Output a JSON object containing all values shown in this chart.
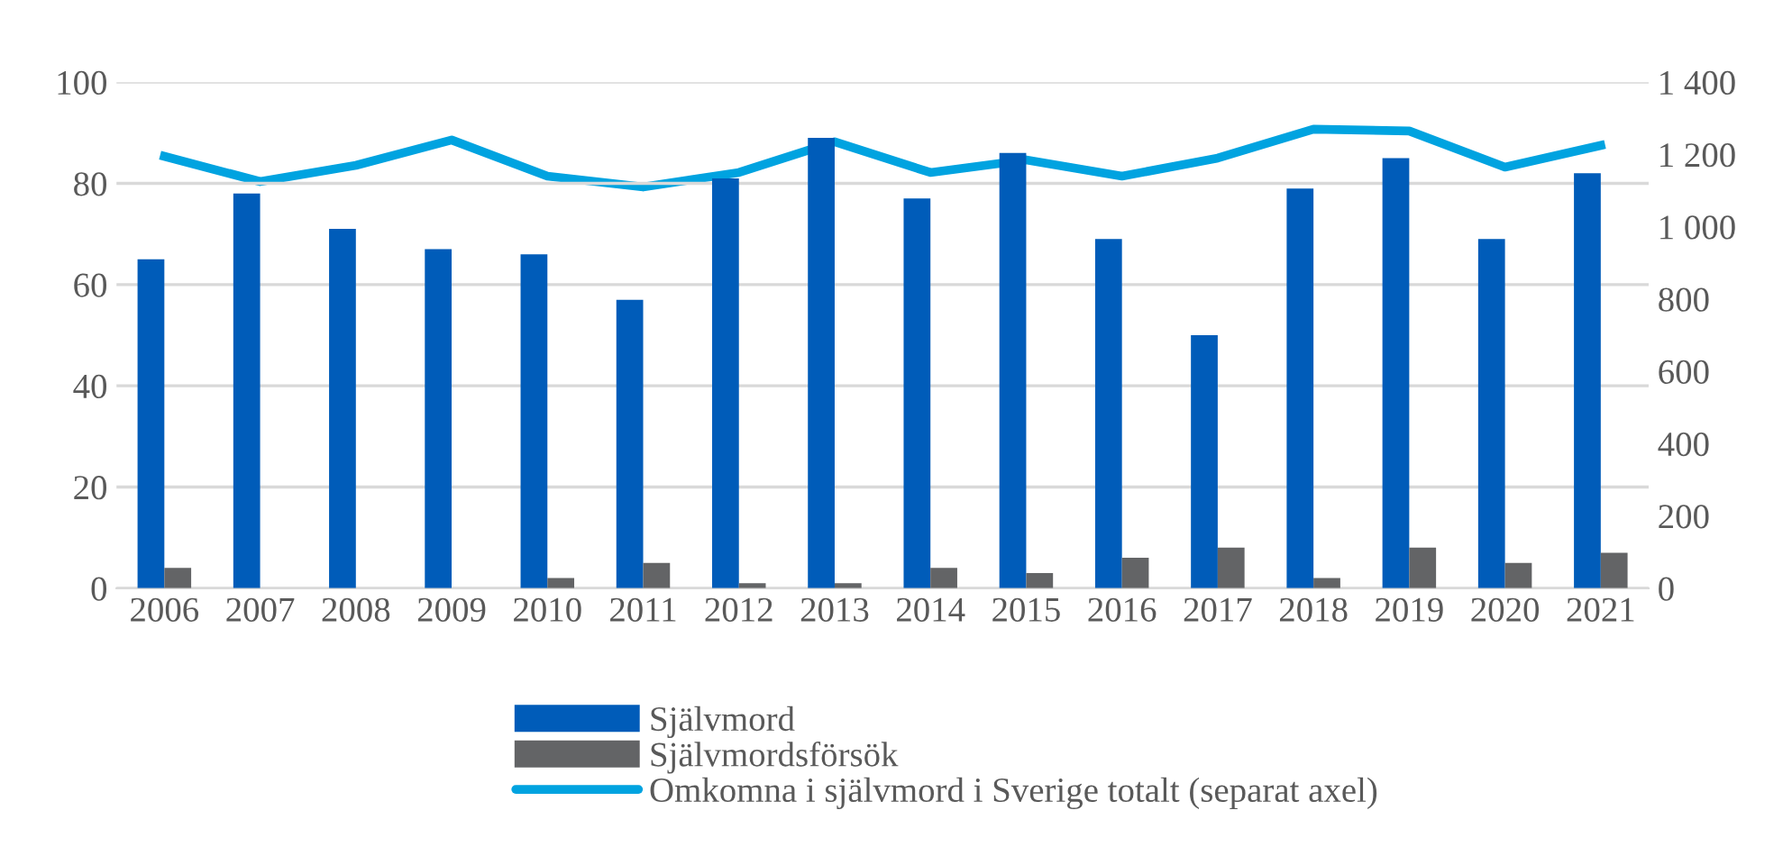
{
  "chart_data": {
    "type": "bar",
    "categories": [
      "2006",
      "2007",
      "2008",
      "2009",
      "2010",
      "2011",
      "2012",
      "2013",
      "2014",
      "2015",
      "2016",
      "2017",
      "2018",
      "2019",
      "2020",
      "2021"
    ],
    "series": [
      {
        "name": "Självmord",
        "color": "#005cb9",
        "values": [
          65,
          78,
          71,
          67,
          66,
          57,
          81,
          89,
          77,
          86,
          69,
          50,
          79,
          85,
          69,
          82
        ]
      },
      {
        "name": "Självmordsförsök",
        "color": "#636466",
        "values": [
          4,
          0,
          0,
          0,
          2,
          5,
          1,
          1,
          4,
          3,
          6,
          8,
          2,
          8,
          5,
          7
        ]
      },
      {
        "name": "Omkomna i självmord i Sverige totalt (separat axel)",
        "type": "line",
        "axis": "y2",
        "color": "#00a3e0",
        "values": [
          1195,
          1125,
          1170,
          1240,
          1140,
          1110,
          1150,
          1235,
          1150,
          1185,
          1140,
          1190,
          1270,
          1265,
          1165,
          1225
        ]
      }
    ],
    "ylim": [
      0,
      100
    ],
    "yticks": [
      0,
      20,
      40,
      60,
      80,
      100
    ],
    "y2lim": [
      0,
      1400
    ],
    "y2ticks": [
      {
        "value": 0,
        "label": "0"
      },
      {
        "value": 200,
        "label": "200"
      },
      {
        "value": 400,
        "label": "400"
      },
      {
        "value": 600,
        "label": "600"
      },
      {
        "value": 800,
        "label": "800"
      },
      {
        "value": 1000,
        "label": "1 000"
      },
      {
        "value": 1200,
        "label": "1 200"
      },
      {
        "value": 1400,
        "label": "1 400"
      }
    ],
    "grid": "y",
    "legend": "bottom"
  }
}
